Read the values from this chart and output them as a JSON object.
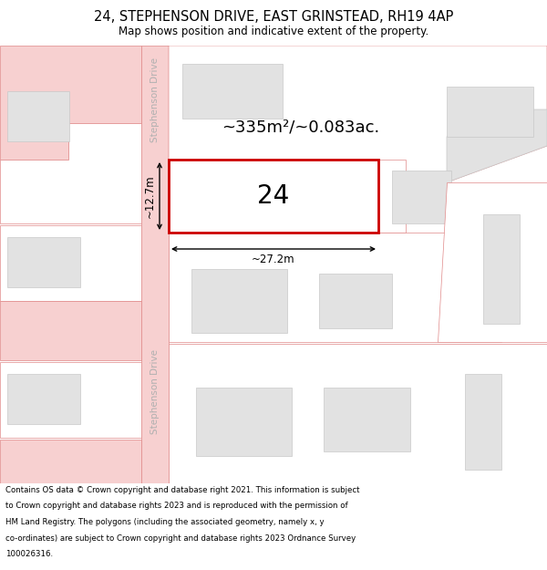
{
  "title": "24, STEPHENSON DRIVE, EAST GRINSTEAD, RH19 4AP",
  "subtitle": "Map shows position and indicative extent of the property.",
  "footer": "Contains OS data © Crown copyright and database right 2021. This information is subject to Crown copyright and database rights 2023 and is reproduced with the permission of HM Land Registry. The polygons (including the associated geometry, namely x, y co-ordinates) are subject to Crown copyright and database rights 2023 Ordnance Survey 100026316.",
  "background_color": "#ffffff",
  "map_bg": "#ffffff",
  "road_color": "#f7d0d0",
  "road_edge_color": "#e08888",
  "building_fill": "#e2e2e2",
  "building_edge": "#c8c8c8",
  "highlight_fill": "#ffffff",
  "highlight_edge": "#cc0000",
  "road_label": "Stephenson Drive",
  "area_label": "~335m²/~0.083ac.",
  "number_label": "24",
  "width_label": "~27.2m",
  "height_label": "~12.7m",
  "title_fontsize": 10.5,
  "subtitle_fontsize": 8.5,
  "footer_fontsize": 6.2,
  "road_label_fontsize": 7.5,
  "area_label_fontsize": 13,
  "number_label_fontsize": 20,
  "dim_label_fontsize": 8.5
}
